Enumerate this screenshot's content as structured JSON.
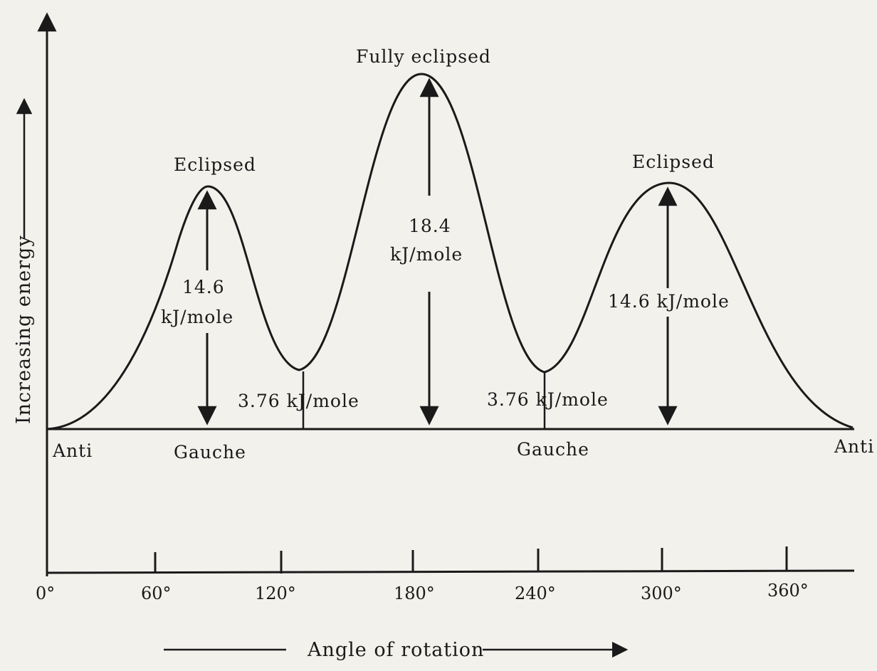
{
  "axes": {
    "y_label": "Increasing energy",
    "x_label": "Angle of rotation",
    "x_ticks": [
      "0°",
      "60°",
      "120°",
      "180°",
      "240°",
      "300°",
      "360°"
    ]
  },
  "conformations": {
    "anti_left": "Anti",
    "gauche_left": "Gauche",
    "eclipsed_left": "Eclipsed",
    "fully_eclipsed": "Fully eclipsed",
    "eclipsed_right": "Eclipsed",
    "gauche_right": "Gauche",
    "anti_right": "Anti"
  },
  "energies": {
    "left_barrier_value": "14.6",
    "left_barrier_unit": "kJ/mole",
    "center_barrier_value": "18.4",
    "center_barrier_unit": "kJ/mole",
    "right_barrier": "14.6 kJ/mole",
    "gauche_left": "3.76 kJ/mole",
    "gauche_right": "3.76 kJ/mole"
  },
  "colors": {
    "ink": "#1a1a1a",
    "paper": "#f2f1ec"
  }
}
